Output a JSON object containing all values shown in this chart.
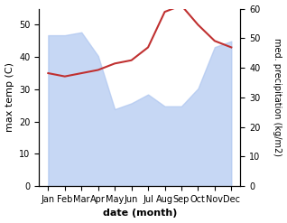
{
  "months": [
    "Jan",
    "Feb",
    "Mar",
    "Apr",
    "May",
    "Jun",
    "Jul",
    "Aug",
    "Sep",
    "Oct",
    "Nov",
    "Dec"
  ],
  "precipitation": [
    51,
    51,
    52,
    44,
    26,
    28,
    31,
    27,
    27,
    33,
    47,
    49
  ],
  "max_temp": [
    35,
    34,
    35,
    36,
    38,
    39,
    43,
    54,
    56,
    50,
    45,
    43
  ],
  "precip_color": "#aec6f0",
  "precip_alpha": 0.7,
  "temp_color": "#c03030",
  "ylabel_left": "max temp (C)",
  "ylabel_right": "med. precipitation (kg/m2)",
  "xlabel": "date (month)",
  "ylim_left": [
    0,
    55
  ],
  "ylim_right": [
    0,
    60
  ],
  "yticks_left": [
    0,
    10,
    20,
    30,
    40,
    50
  ],
  "yticks_right": [
    0,
    10,
    20,
    30,
    40,
    50,
    60
  ],
  "bg_color": "#ffffff"
}
